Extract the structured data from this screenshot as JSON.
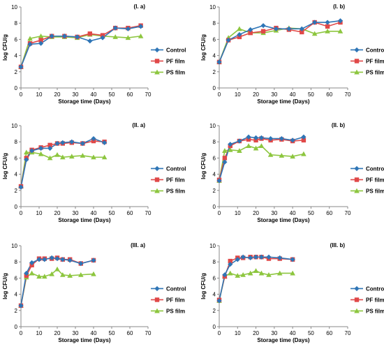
{
  "colors": {
    "Control": "#2e75b6",
    "PF film": "#e04848",
    "PS film": "#8dc63f"
  },
  "chart_data": [
    {
      "panel": "(I. a)",
      "type": "line",
      "xlabel": "Storage time (Days)",
      "ylabel": "log CFU/g",
      "xlim": [
        0,
        70
      ],
      "ylim": [
        0,
        10
      ],
      "xticks": [
        0,
        10,
        20,
        30,
        40,
        50,
        60,
        70
      ],
      "yticks": [
        0,
        2,
        4,
        6,
        8,
        10
      ],
      "legend": "right",
      "x": [
        0,
        5,
        11,
        17,
        24,
        31,
        38,
        45,
        52,
        59,
        66
      ],
      "series": [
        {
          "name": "Control",
          "marker": "diamond",
          "values": [
            2.6,
            5.4,
            5.5,
            6.4,
            6.4,
            6.3,
            5.8,
            6.2,
            7.4,
            7.3,
            7.6
          ]
        },
        {
          "name": "PF film",
          "marker": "square",
          "values": [
            2.6,
            5.5,
            5.9,
            6.4,
            6.4,
            6.3,
            6.7,
            6.5,
            7.4,
            7.4,
            7.7
          ]
        },
        {
          "name": "PS film",
          "marker": "triangle",
          "values": [
            2.6,
            6.1,
            6.4,
            6.3,
            6.3,
            6.2,
            6.6,
            6.4,
            6.3,
            6.2,
            6.4
          ]
        }
      ]
    },
    {
      "panel": "(I. b)",
      "type": "line",
      "xlabel": "Storage time (Days)",
      "ylabel": "log CFU/g",
      "xlim": [
        0,
        70
      ],
      "ylim": [
        0,
        10
      ],
      "xticks": [
        0,
        10,
        20,
        30,
        40,
        50,
        60,
        70
      ],
      "yticks": [
        0,
        2,
        4,
        6,
        8,
        10
      ],
      "legend": "right",
      "x": [
        0,
        5,
        11,
        17,
        24,
        31,
        38,
        45,
        52,
        59,
        66
      ],
      "series": [
        {
          "name": "Control",
          "marker": "diamond",
          "values": [
            3.2,
            5.9,
            6.6,
            7.2,
            7.7,
            7.3,
            7.3,
            7.3,
            8.1,
            8.1,
            8.3
          ]
        },
        {
          "name": "PF film",
          "marker": "square",
          "values": [
            3.2,
            5.9,
            6.3,
            6.8,
            7.0,
            7.4,
            7.2,
            6.9,
            8.1,
            7.6,
            8.1
          ]
        },
        {
          "name": "PS film",
          "marker": "triangle",
          "values": [
            3.2,
            6.2,
            7.3,
            6.8,
            6.8,
            7.1,
            7.4,
            7.3,
            6.7,
            7.0,
            7.0
          ]
        }
      ]
    },
    {
      "panel": "(II. a)",
      "type": "line",
      "xlabel": "Storage time (Days)",
      "ylabel": "log CFU/g",
      "xlim": [
        0,
        70
      ],
      "ylim": [
        0,
        10
      ],
      "xticks": [
        0,
        10,
        20,
        30,
        40,
        50,
        60,
        70
      ],
      "yticks": [
        0,
        2,
        4,
        6,
        8,
        10
      ],
      "legend": "right",
      "x": [
        0,
        3,
        6,
        11,
        16,
        20,
        23,
        28,
        34,
        40,
        46
      ],
      "series": [
        {
          "name": "Control",
          "marker": "diamond",
          "values": [
            2.4,
            5.8,
            6.9,
            7.2,
            7.2,
            7.8,
            7.9,
            8.0,
            7.8,
            8.4,
            7.9
          ]
        },
        {
          "name": "PF film",
          "marker": "square",
          "values": [
            2.5,
            6.0,
            7.0,
            7.3,
            7.6,
            7.8,
            7.8,
            7.9,
            7.8,
            8.1,
            8.0
          ]
        },
        {
          "name": "PS film",
          "marker": "triangle",
          "values": [
            2.5,
            6.7,
            6.7,
            6.5,
            6.0,
            6.4,
            6.1,
            6.2,
            6.3,
            6.1,
            6.1
          ]
        }
      ]
    },
    {
      "panel": "(II. b)",
      "type": "line",
      "xlabel": "Storage time (Days)",
      "ylabel": "log CFU/g",
      "xlim": [
        0,
        70
      ],
      "ylim": [
        0,
        10
      ],
      "xticks": [
        0,
        10,
        20,
        30,
        40,
        50,
        60,
        70
      ],
      "yticks": [
        0,
        2,
        4,
        6,
        8,
        10
      ],
      "legend": "right",
      "x": [
        0,
        3,
        6,
        11,
        16,
        20,
        23,
        28,
        34,
        40,
        46
      ],
      "series": [
        {
          "name": "Control",
          "marker": "diamond",
          "values": [
            3.2,
            5.5,
            7.7,
            8.1,
            8.6,
            8.5,
            8.5,
            8.4,
            8.4,
            8.2,
            8.6
          ]
        },
        {
          "name": "PF film",
          "marker": "square",
          "values": [
            3.3,
            6.0,
            7.5,
            8.1,
            8.3,
            8.2,
            8.4,
            8.2,
            8.3,
            8.1,
            8.2
          ]
        },
        {
          "name": "PS film",
          "marker": "triangle",
          "values": [
            3.2,
            6.9,
            7.0,
            6.9,
            7.5,
            7.2,
            7.5,
            6.4,
            6.3,
            6.2,
            6.5
          ]
        }
      ]
    },
    {
      "panel": "(III. a)",
      "type": "line",
      "xlabel": "Storage time (Days)",
      "ylabel": "log CFU/g",
      "xlim": [
        0,
        70
      ],
      "ylim": [
        0,
        10
      ],
      "xticks": [
        0,
        10,
        20,
        30,
        40,
        50,
        60,
        70
      ],
      "yticks": [
        0,
        2,
        4,
        6,
        8,
        10
      ],
      "legend": "right",
      "x": [
        0,
        3,
        6,
        10,
        13,
        17,
        20,
        23,
        27,
        33,
        40
      ],
      "series": [
        {
          "name": "Control",
          "marker": "diamond",
          "values": [
            2.6,
            6.6,
            7.9,
            8.3,
            8.3,
            8.5,
            8.4,
            8.3,
            8.2,
            7.8,
            8.2
          ]
        },
        {
          "name": "PF film",
          "marker": "square",
          "values": [
            2.6,
            6.3,
            7.6,
            8.4,
            8.4,
            8.4,
            8.5,
            8.3,
            8.3,
            7.8,
            8.2
          ]
        },
        {
          "name": "PS film",
          "marker": "triangle",
          "values": [
            2.6,
            6.1,
            6.6,
            6.2,
            6.2,
            6.5,
            7.1,
            6.4,
            6.3,
            6.4,
            6.5
          ]
        }
      ]
    },
    {
      "panel": "(III. b)",
      "type": "line",
      "xlabel": "Storage time (Days)",
      "ylabel": "log CFU/g",
      "xlim": [
        0,
        70
      ],
      "ylim": [
        0,
        10
      ],
      "xticks": [
        0,
        10,
        20,
        30,
        40,
        50,
        60,
        70
      ],
      "yticks": [
        0,
        2,
        4,
        6,
        8,
        10
      ],
      "legend": "right",
      "x": [
        0,
        3,
        6,
        10,
        13,
        17,
        20,
        23,
        27,
        33,
        40
      ],
      "series": [
        {
          "name": "Control",
          "marker": "diamond",
          "values": [
            3.2,
            6.4,
            7.7,
            8.3,
            8.6,
            8.5,
            8.6,
            8.6,
            8.6,
            8.5,
            8.3
          ]
        },
        {
          "name": "PF film",
          "marker": "square",
          "values": [
            3.3,
            6.2,
            8.1,
            8.5,
            8.5,
            8.6,
            8.6,
            8.6,
            8.4,
            8.4,
            8.3
          ]
        },
        {
          "name": "PS film",
          "marker": "triangle",
          "values": [
            3.2,
            6.2,
            6.6,
            6.3,
            6.4,
            6.6,
            6.9,
            6.6,
            6.4,
            6.6,
            6.6
          ]
        }
      ]
    }
  ]
}
